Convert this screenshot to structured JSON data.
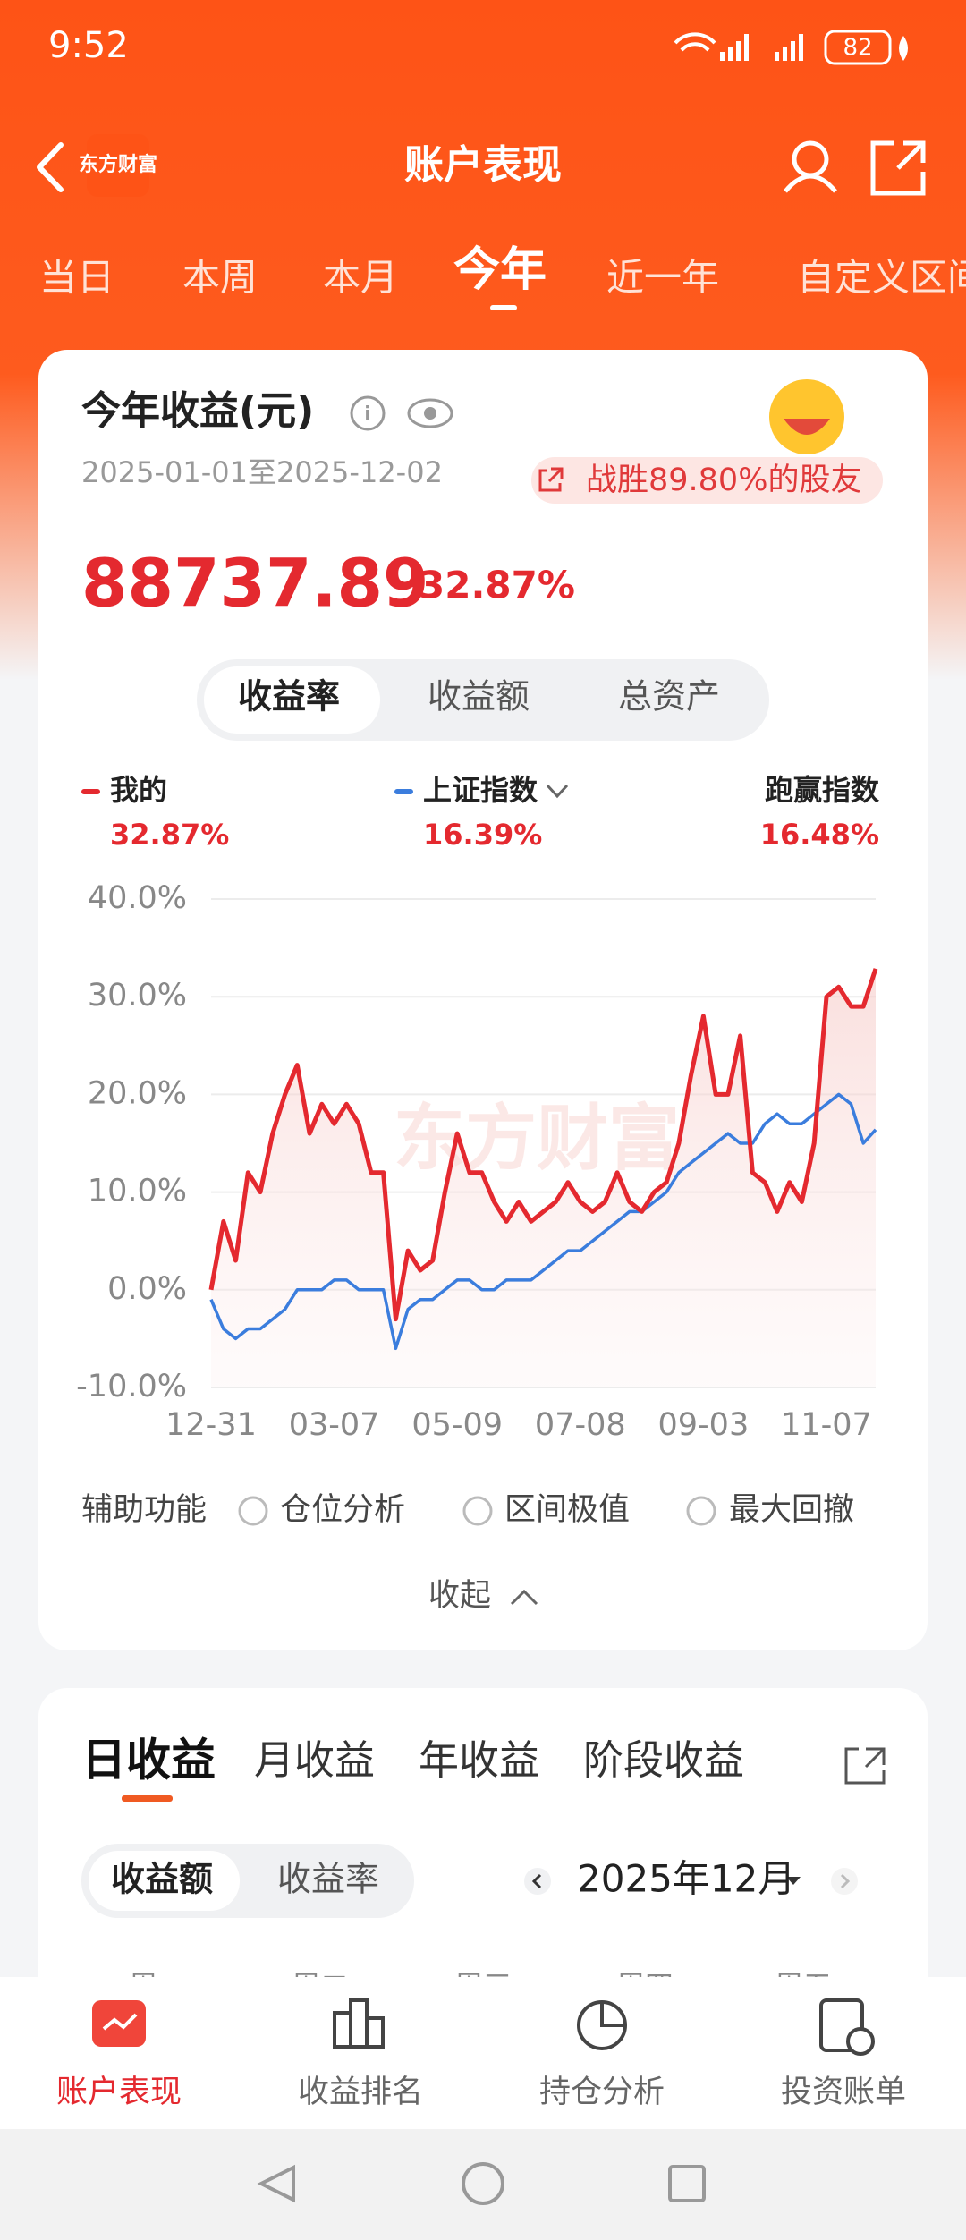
{
  "status_bar": {
    "time": "9:52",
    "battery": "82"
  },
  "header": {
    "title": "账户表现",
    "logo": "东方财富"
  },
  "tabs": [
    "当日",
    "本周",
    "本月",
    "今年",
    "近一年",
    "自定义区间"
  ],
  "summary": {
    "title": "今年收益(元)",
    "date_range": "2025-01-01至2025-12-02",
    "badge": "战胜89.80%的股友",
    "amount": "88737.89",
    "rate": "32.87%"
  },
  "view_toggle": [
    "收益率",
    "收益额",
    "总资产"
  ],
  "legend_values": [
    "32.87%",
    "16.39%"
  ],
  "comparison": {
    "label": "跑赢指数",
    "value": "16.48%"
  },
  "chart_data": {
    "type": "line",
    "watermark": "东方财富",
    "categories": [
      "12-31",
      null,
      null,
      null,
      null,
      null,
      null,
      null,
      null,
      null,
      "03-07",
      null,
      null,
      null,
      null,
      null,
      null,
      null,
      null,
      null,
      "05-09",
      null,
      null,
      null,
      null,
      null,
      null,
      null,
      null,
      null,
      "07-08",
      null,
      null,
      null,
      null,
      null,
      null,
      null,
      null,
      null,
      "09-03",
      null,
      null,
      null,
      null,
      null,
      null,
      null,
      null,
      null,
      "11-07",
      null,
      null,
      null,
      null
    ],
    "series": [
      {
        "name": "我的",
        "color": "#e4292f",
        "values": [
          0,
          7,
          3,
          12,
          10,
          16,
          20,
          23,
          16,
          19,
          17,
          19,
          17,
          12,
          12,
          -3,
          4,
          2,
          3,
          10,
          16,
          12,
          12,
          9,
          7,
          9,
          7,
          8,
          9,
          11,
          9,
          8,
          9,
          12,
          9,
          8,
          10,
          11,
          15,
          22,
          28,
          20,
          20,
          26,
          12,
          11,
          8,
          11,
          9,
          15,
          30,
          31,
          29,
          29,
          32.87
        ]
      },
      {
        "name": "上证指数",
        "color": "#3b7ddd",
        "values": [
          -1,
          -4,
          -5,
          -4,
          -4,
          -3,
          -2,
          0,
          0,
          0,
          1,
          1,
          0,
          0,
          0,
          -6,
          -2,
          -1,
          -1,
          0,
          1,
          1,
          0,
          0,
          1,
          1,
          1,
          2,
          3,
          4,
          4,
          5,
          6,
          7,
          8,
          8,
          9,
          10,
          12,
          13,
          14,
          15,
          16,
          15,
          15,
          17,
          18,
          17,
          17,
          18,
          19,
          20,
          19,
          15,
          16.39
        ]
      }
    ],
    "ylim": [
      -10,
      40
    ],
    "yticks": [
      {
        "value": -10,
        "label": "-10.0%"
      },
      {
        "value": 0,
        "label": "0.0%"
      },
      {
        "value": 10,
        "label": "10.0%"
      },
      {
        "value": 20,
        "label": "20.0%"
      },
      {
        "value": 30,
        "label": "30.0%"
      },
      {
        "value": 40,
        "label": "40.0%"
      }
    ],
    "grid": true
  },
  "tools": {
    "label": "辅助功能",
    "options": [
      "仓位分析",
      "区间极值",
      "最大回撤"
    ]
  },
  "collapse": "收起",
  "earnings": {
    "tabs": [
      "日收益",
      "月收益",
      "年收益",
      "阶段收益"
    ],
    "toggle": [
      "收益额",
      "收益率"
    ],
    "month": "2025年12月",
    "weekdays": [
      "周一",
      "周二",
      "周三",
      "周四",
      "周五"
    ]
  },
  "bottom_nav": [
    "账户表现",
    "收益排名",
    "持仓分析",
    "投资账单"
  ]
}
